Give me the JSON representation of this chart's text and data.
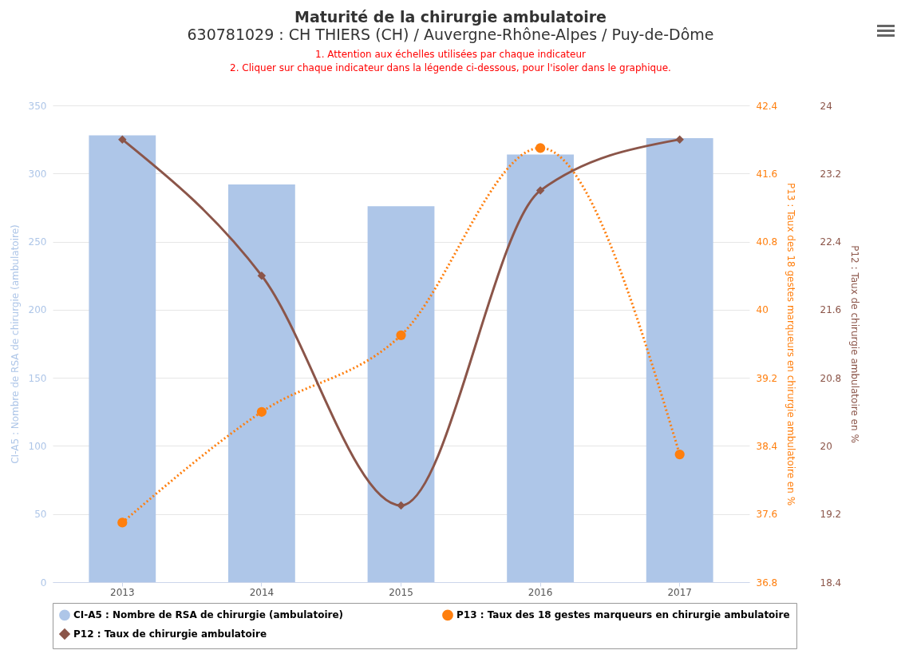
{
  "chart_data": {
    "type": "bar",
    "title": "Maturité de la chirurgie ambulatoire",
    "subtitle": "630781029 : CH THIERS (CH) / Auvergne-Rhône-Alpes / Puy-de-Dôme",
    "annotations": [
      "1. Attention aux échelles utilisées par chaque indicateur",
      "2. Cliquer sur chaque indicateur dans la légende ci-dessous, pour l'isoler dans le graphique."
    ],
    "categories": [
      "2013",
      "2014",
      "2015",
      "2016",
      "2017"
    ],
    "ylabel": "CI-A5 : Nombre de RSA de chirurgie (ambulatoire)",
    "y2label": "P13 : Taux des 18 gestes marqueurs en chirurgie ambulatoire en %",
    "y3label": "P12 : Taux de chirurgie ambulatoire en %",
    "ylim": [
      0,
      350
    ],
    "yticks": [
      0,
      50,
      100,
      150,
      200,
      250,
      300,
      350
    ],
    "y2lim": [
      36.8,
      42.4
    ],
    "y2ticks": [
      36.8,
      37.6,
      38.4,
      39.2,
      40,
      40.8,
      41.6,
      42.4
    ],
    "y3lim": [
      18.4,
      24
    ],
    "y3ticks": [
      18.4,
      19.2,
      20,
      20.8,
      21.6,
      22.4,
      23.2,
      24
    ],
    "series": [
      {
        "name": "CI-A5 : Nombre de RSA de chirurgie (ambulatoire)",
        "color": "#aec6e8",
        "values": [
          328,
          292,
          276,
          314,
          326
        ]
      },
      {
        "name": "P13 : Taux des 18 gestes marqueurs en chirurgie ambulatoire",
        "type": "line",
        "axis": "y2",
        "color": "#ff7f0e",
        "marker": "circle",
        "line_style": "dotted",
        "values": [
          37.5,
          38.8,
          39.7,
          41.9,
          38.3
        ]
      },
      {
        "name": "P12 : Taux de chirurgie ambulatoire",
        "type": "line",
        "axis": "y3",
        "color": "#8b5549",
        "marker": "diamond",
        "line_style": "solid",
        "values": [
          23.6,
          22.0,
          19.3,
          23.0,
          23.6
        ]
      }
    ],
    "grid": "y",
    "legend": "bottom"
  }
}
